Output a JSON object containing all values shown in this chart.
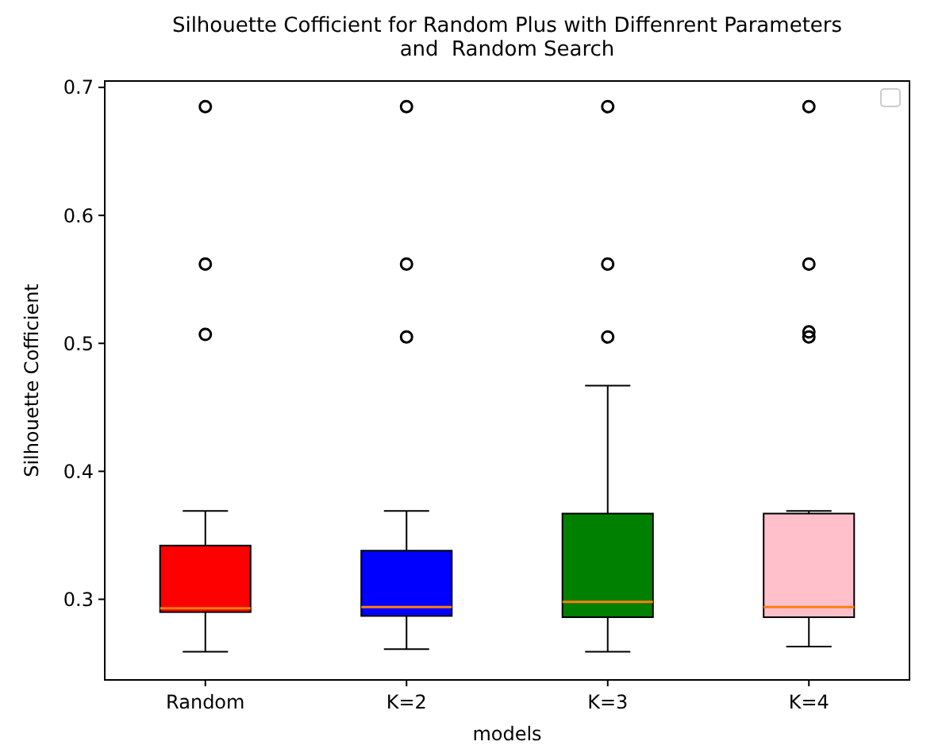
{
  "chart_data": {
    "type": "box",
    "title": "Silhouette Cofficient for Random Plus with Diffenrent Parameters\nand  Random Search",
    "xlabel": "models",
    "ylabel": "Silhouette Cofficient",
    "categories": [
      "Random",
      "K=2",
      "K=3",
      "K=4"
    ],
    "colors": [
      "#ff0000",
      "#0000ff",
      "#008000",
      "#ffc0cb"
    ],
    "boxes": [
      {
        "low": 0.259,
        "q1": 0.29,
        "median": 0.293,
        "q3": 0.342,
        "high": 0.369,
        "outliers": [
          0.685,
          0.562,
          0.507
        ]
      },
      {
        "low": 0.261,
        "q1": 0.287,
        "median": 0.294,
        "q3": 0.338,
        "high": 0.369,
        "outliers": [
          0.685,
          0.562,
          0.505
        ]
      },
      {
        "low": 0.259,
        "q1": 0.286,
        "median": 0.298,
        "q3": 0.367,
        "high": 0.467,
        "outliers": [
          0.685,
          0.562,
          0.505
        ]
      },
      {
        "low": 0.263,
        "q1": 0.286,
        "median": 0.294,
        "q3": 0.367,
        "high": 0.369,
        "outliers": [
          0.685,
          0.562,
          0.509,
          0.505
        ]
      }
    ],
    "ylim": [
      0.237,
      0.705
    ],
    "yticks": [
      0.3,
      0.4,
      0.5,
      0.6,
      0.7
    ],
    "grid": false
  }
}
